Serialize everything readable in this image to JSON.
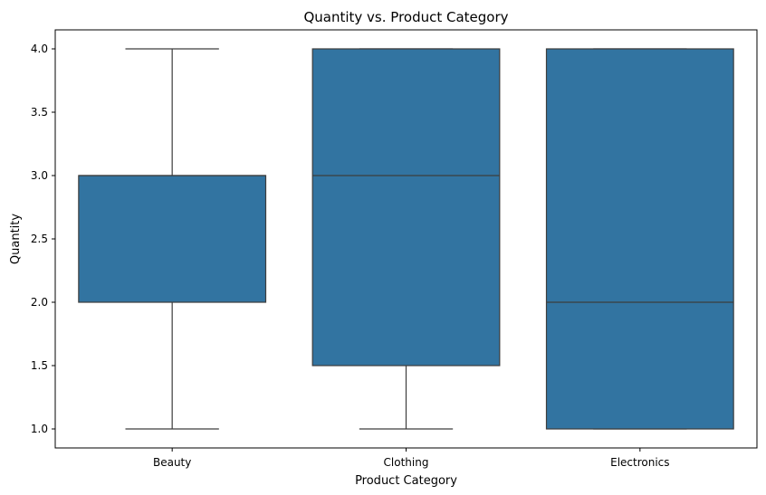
{
  "chart_data": {
    "type": "box",
    "title": "Quantity vs. Product Category",
    "xlabel": "Product Category",
    "ylabel": "Quantity",
    "ylim": [
      0.85,
      4.15
    ],
    "yticks": [
      "1.0",
      "1.5",
      "2.0",
      "2.5",
      "3.0",
      "3.5",
      "4.0"
    ],
    "ytick_values": [
      1.0,
      1.5,
      2.0,
      2.5,
      3.0,
      3.5,
      4.0
    ],
    "grid": false,
    "legend": "none",
    "box_color": "#3274a1",
    "line_color": "#3d3d3d",
    "categories": [
      "Beauty",
      "Clothing",
      "Electronics"
    ],
    "boxes": [
      {
        "category": "Beauty",
        "whisker_low": 1.0,
        "q1": 2.0,
        "median": 3.0,
        "q3": 3.0,
        "whisker_high": 4.0
      },
      {
        "category": "Clothing",
        "whisker_low": 1.0,
        "q1": 1.5,
        "median": 3.0,
        "q3": 4.0,
        "whisker_high": 4.0
      },
      {
        "category": "Electronics",
        "whisker_low": 1.0,
        "q1": 1.0,
        "median": 2.0,
        "q3": 4.0,
        "whisker_high": 4.0
      }
    ]
  }
}
